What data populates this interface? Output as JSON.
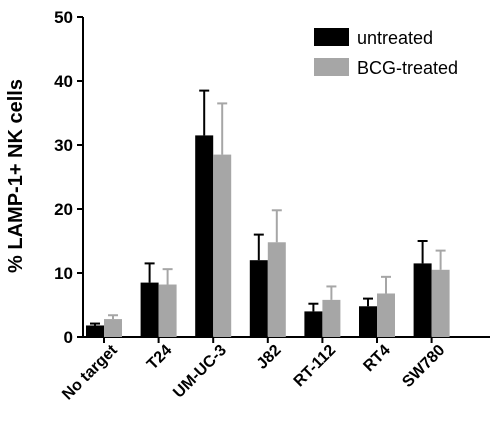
{
  "chart_data": {
    "type": "bar",
    "title": "",
    "xlabel": "",
    "ylabel": "% LAMP-1+ NK cells",
    "ylim": [
      0,
      50
    ],
    "yticks": [
      0,
      10,
      20,
      30,
      40,
      50
    ],
    "categories": [
      "No target",
      "T24",
      "UM-UC-3",
      "J82",
      "RT-112",
      "RT4",
      "SW780"
    ],
    "series": [
      {
        "name": "untreated",
        "color": "#000000",
        "values": [
          1.8,
          8.5,
          31.5,
          12.0,
          4.0,
          4.8,
          11.5
        ],
        "errors": [
          0.3,
          3.0,
          7.0,
          4.0,
          1.2,
          1.2,
          3.5
        ]
      },
      {
        "name": "BCG-treated",
        "color": "#a6a6a6",
        "values": [
          2.8,
          8.2,
          28.5,
          14.8,
          5.8,
          6.8,
          10.5
        ],
        "errors": [
          0.6,
          2.4,
          8.0,
          5.0,
          2.1,
          2.6,
          3.0
        ]
      }
    ],
    "legend_position": "top-right",
    "grid": false
  }
}
